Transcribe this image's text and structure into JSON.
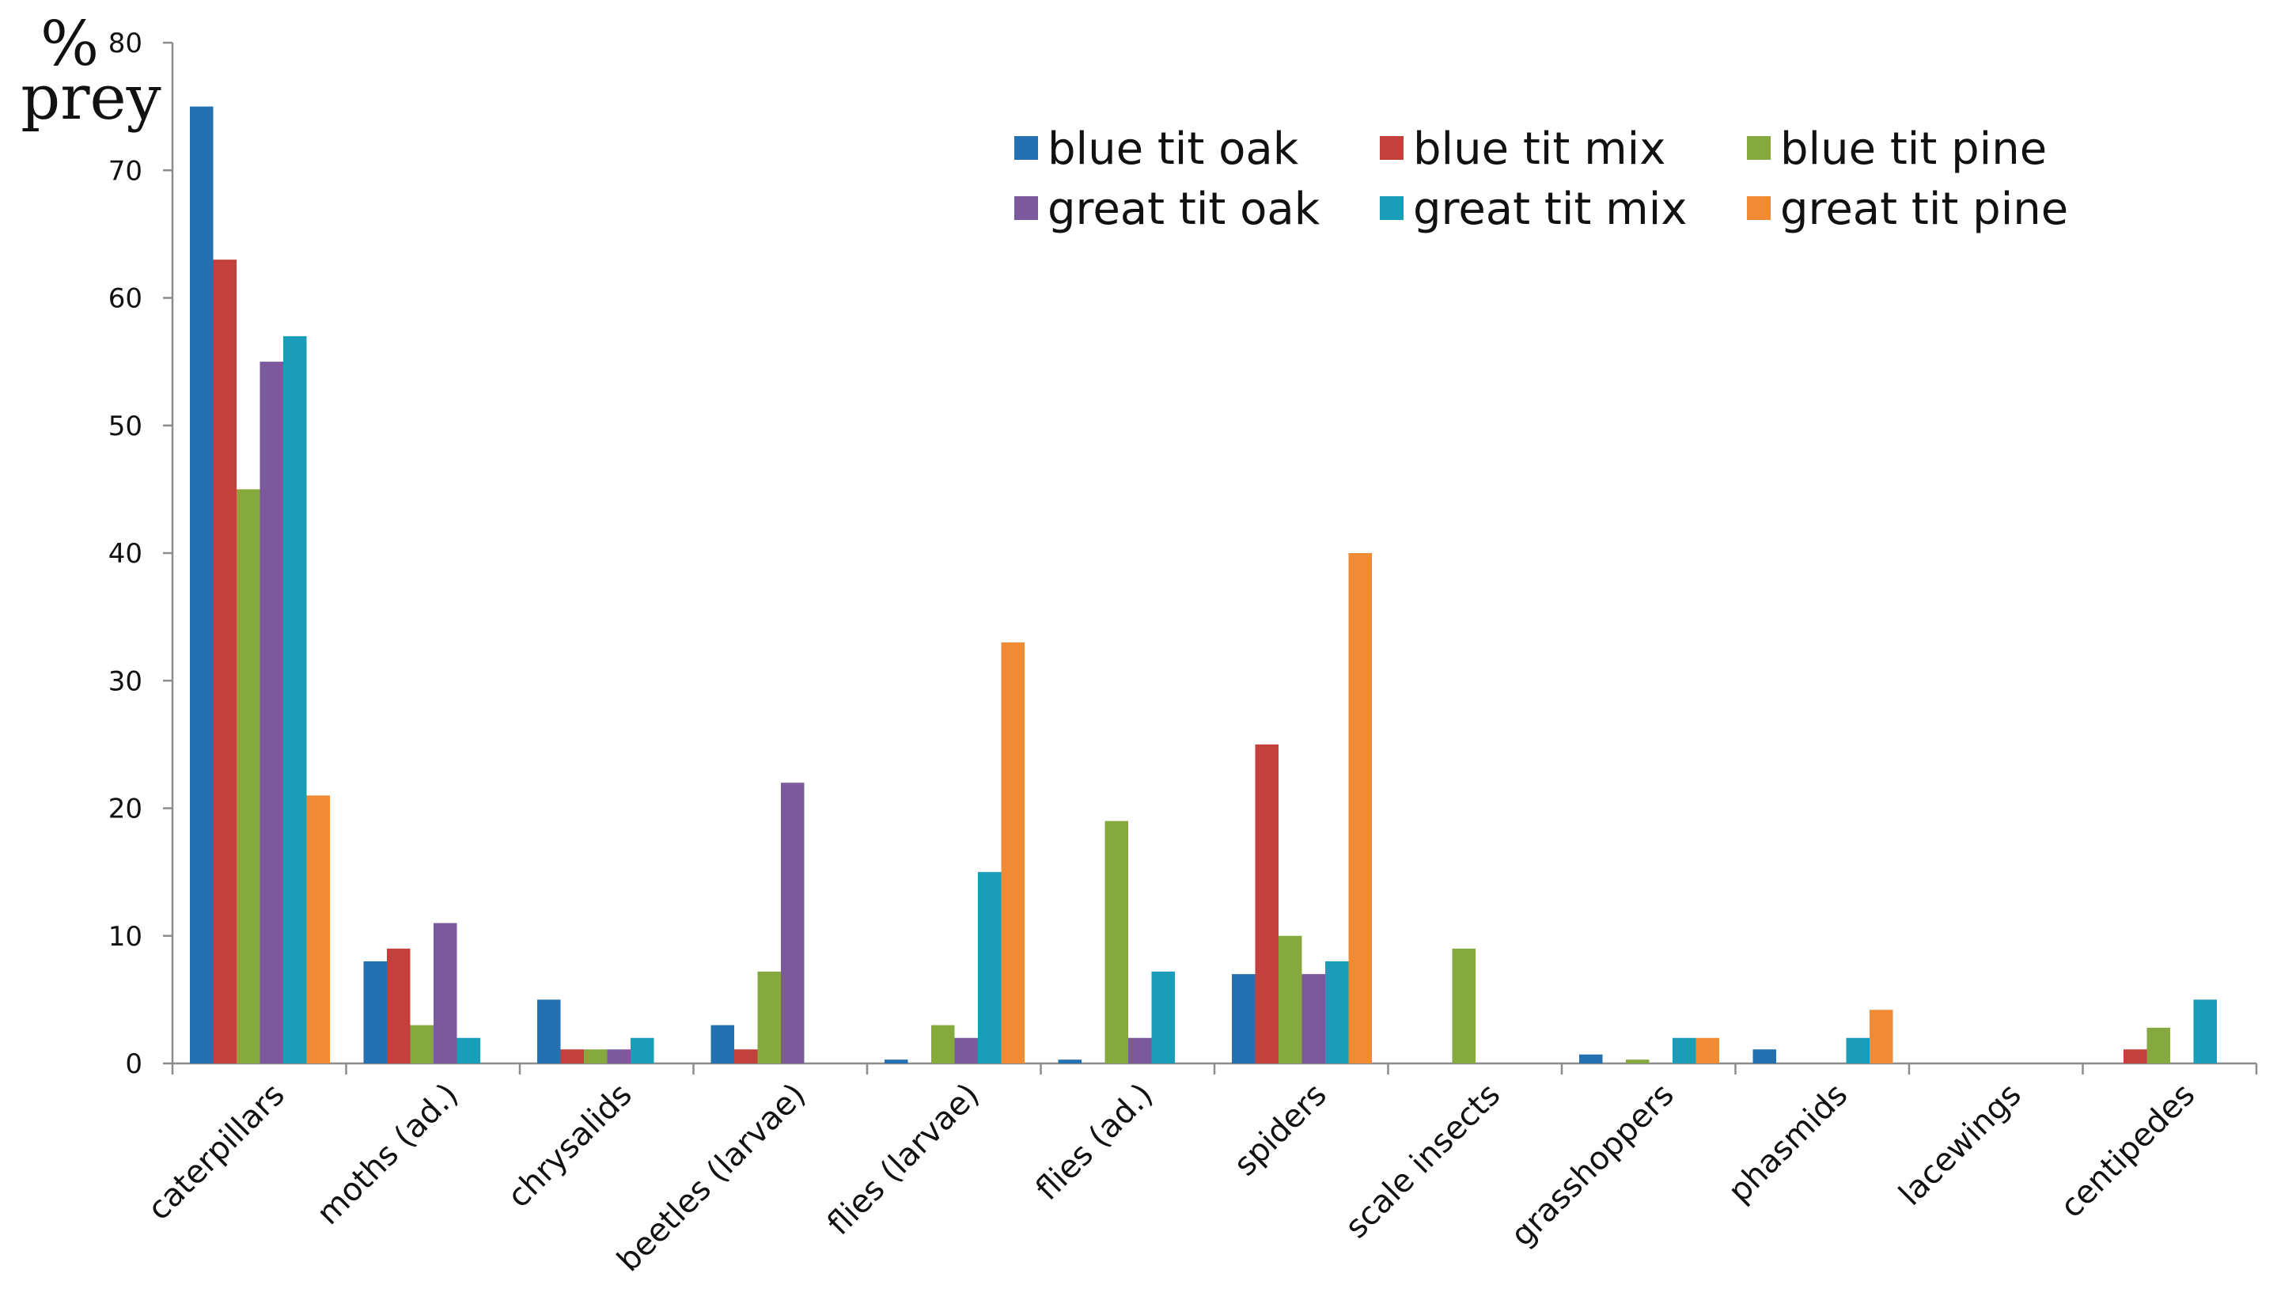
{
  "chart_data": {
    "type": "bar",
    "ylabel_lines": [
      "%",
      "prey"
    ],
    "xlabel": "",
    "ylim": [
      0,
      80
    ],
    "yticks": [
      0,
      10,
      20,
      30,
      40,
      50,
      60,
      70,
      80
    ],
    "grid": false,
    "legend_position": "top-right",
    "categories": [
      "caterpillars",
      "moths (ad.)",
      "chrysalids",
      "beetles (larvae)",
      "flies (larvae)",
      "flies (ad.)",
      "spiders",
      "scale insects",
      "grasshoppers",
      "phasmids",
      "lacewings",
      "centipedes"
    ],
    "series": [
      {
        "name": "blue tit oak",
        "color": "#2570b0",
        "values": [
          75,
          8,
          5,
          3,
          0.3,
          0.3,
          7,
          0,
          0.7,
          1.1,
          0,
          0
        ]
      },
      {
        "name": "blue tit mix",
        "color": "#c3403d",
        "values": [
          63,
          9,
          1.1,
          1.1,
          0,
          0,
          25,
          0,
          0,
          0,
          0,
          1.1
        ]
      },
      {
        "name": "blue tit pine",
        "color": "#86a93f",
        "values": [
          45,
          3,
          1.1,
          7.2,
          3,
          19,
          10,
          9,
          0.3,
          0,
          0,
          2.8
        ]
      },
      {
        "name": "great tit oak",
        "color": "#7a5a9c",
        "values": [
          55,
          11,
          1.1,
          22,
          2,
          2,
          7,
          0,
          0,
          0,
          0,
          0
        ]
      },
      {
        "name": "great tit mix",
        "color": "#1a9db9",
        "values": [
          57,
          2,
          2,
          0,
          15,
          7.2,
          8,
          0,
          2,
          2,
          0,
          5
        ]
      },
      {
        "name": "great tit pine",
        "color": "#f18a35",
        "values": [
          21,
          0,
          0,
          0,
          33,
          0,
          40,
          0,
          2,
          4.2,
          0,
          0
        ]
      }
    ]
  }
}
